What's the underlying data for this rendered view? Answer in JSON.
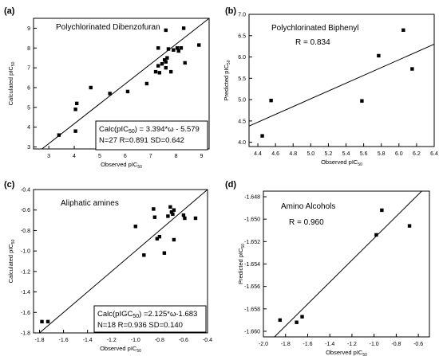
{
  "chart_data": [
    {
      "type": "scatter",
      "panel_label": "(a)",
      "title": "Polychlorinated Dibenzofuran",
      "xlabel_main": "Observed pIC",
      "xlabel_sub": "50",
      "ylabel_main": "Calculated pIC",
      "ylabel_sub": "50",
      "xlim": [
        2.4,
        9.3
      ],
      "ylim": [
        2.9,
        9.5
      ],
      "xticks": [
        3,
        4,
        5,
        6,
        7,
        8,
        9
      ],
      "yticks": [
        3,
        4,
        5,
        6,
        7,
        8,
        9
      ],
      "x": [
        3.4,
        4.05,
        4.05,
        4.1,
        4.65,
        5.4,
        6.1,
        6.85,
        7.2,
        7.3,
        7.35,
        7.45,
        7.55,
        7.6,
        7.6,
        7.65,
        7.7,
        7.8,
        7.9,
        8.05,
        8.1,
        8.2,
        8.3,
        8.35,
        8.9,
        7.6,
        7.3
      ],
      "y": [
        3.6,
        3.8,
        4.9,
        5.2,
        6.0,
        5.7,
        5.8,
        6.2,
        6.8,
        8.0,
        6.75,
        7.2,
        7.4,
        7.3,
        8.9,
        7.5,
        7.95,
        6.8,
        7.9,
        8.0,
        7.85,
        8.0,
        9.0,
        7.25,
        8.15,
        7.0,
        7.1
      ],
      "fit_line": {
        "x": [
          2.4,
          9.3
        ],
        "y": [
          2.566,
          9.5
        ]
      },
      "annotation_lines": [
        {
          "pre": "Calc(pIC",
          "sub": "50",
          "post": ") = 3.394*ω - 5.579"
        },
        {
          "pre": "N=27 R=0.891 SD=0.642",
          "sub": "",
          "post": ""
        }
      ]
    },
    {
      "type": "scatter",
      "panel_label": "(b)",
      "title": "Polychlorinated Biphenyl",
      "stat": "R = 0.834",
      "xlabel_main": "Observed pIC",
      "xlabel_sub": "50",
      "ylabel_main": "Predicted pIC",
      "ylabel_sub": "50",
      "xlim": [
        4.3,
        6.4
      ],
      "ylim": [
        3.9,
        7.0
      ],
      "xticks": [
        4.4,
        4.6,
        4.8,
        5.0,
        5.2,
        5.4,
        5.6,
        5.8,
        6.0,
        6.2,
        6.4
      ],
      "yticks": [
        4.0,
        4.5,
        5.0,
        5.5,
        6.0,
        6.5,
        7.0
      ],
      "xtick_fmt": 1,
      "ytick_fmt": 1,
      "x": [
        4.45,
        4.55,
        5.58,
        5.77,
        6.05,
        6.15
      ],
      "y": [
        4.15,
        4.98,
        4.97,
        6.03,
        6.63,
        5.72
      ],
      "fit_line": {
        "x": [
          4.3,
          6.4
        ],
        "y": [
          4.38,
          6.3
        ]
      }
    },
    {
      "type": "scatter",
      "panel_label": "(c)",
      "title": "Aliphatic amines",
      "xlabel_main": "Observed pIC",
      "xlabel_sub": "50",
      "ylabel_main": "Calculated pIC",
      "ylabel_sub": "50",
      "xlim": [
        -1.85,
        -0.4
      ],
      "ylim": [
        -1.8,
        -0.4
      ],
      "xticks": [
        -1.8,
        -1.6,
        -1.4,
        -1.2,
        -1.0,
        -0.8,
        -0.6,
        -0.4
      ],
      "yticks": [
        -1.8,
        -1.6,
        -1.4,
        -1.2,
        -1.0,
        -0.8,
        -0.6,
        -0.4
      ],
      "xtick_fmt": 1,
      "ytick_fmt": 1,
      "x": [
        -1.78,
        -1.73,
        -1.0,
        -0.93,
        -0.85,
        -0.84,
        -0.82,
        -0.76,
        -0.73,
        -0.71,
        -0.7,
        -0.69,
        -0.68,
        -0.6,
        -0.59,
        -0.5,
        -0.68,
        -0.8
      ],
      "y": [
        -1.69,
        -1.69,
        -0.76,
        -1.04,
        -0.59,
        -0.67,
        -0.88,
        -1.02,
        -0.66,
        -0.57,
        -0.62,
        -0.64,
        -0.89,
        -0.65,
        -0.68,
        -0.68,
        -0.6,
        -0.86
      ],
      "fit_line": {
        "x": [
          -1.85,
          -0.4
        ],
        "y": [
          -1.85,
          -0.4
        ]
      },
      "annotation_lines": [
        {
          "pre": "Calc(pIGC",
          "sub": "50",
          "post": ") =2.125*ω-1.683"
        },
        {
          "pre": "N=18 R=0.936 SD=0.140",
          "sub": "",
          "post": ""
        }
      ]
    },
    {
      "type": "scatter",
      "panel_label": "(d)",
      "title": "Amino Alcohols",
      "stat": "R = 0.960",
      "xlabel_main": "Observed pIC",
      "xlabel_sub": "50",
      "ylabel_main": "Predicted pIC",
      "ylabel_sub": "50",
      "xlim": [
        -2.0,
        -0.5
      ],
      "ylim": [
        -1.6605,
        -1.6475
      ],
      "xticks": [
        -2.0,
        -1.8,
        -1.6,
        -1.4,
        -1.2,
        -1.0,
        -0.8,
        -0.6
      ],
      "yticks": [
        -1.66,
        -1.658,
        -1.656,
        -1.654,
        -1.652,
        -1.65,
        -1.648
      ],
      "xtick_fmt": 1,
      "ytick_fmt": 3,
      "x": [
        -1.85,
        -1.7,
        -1.65,
        -0.98,
        -0.93,
        -0.68
      ],
      "y": [
        -1.659,
        -1.6592,
        -1.6587,
        -1.6514,
        -1.6492,
        -1.6506
      ],
      "fit_line": {
        "x": [
          -1.9,
          -0.57
        ],
        "y": [
          -1.6605,
          -1.6475
        ]
      }
    }
  ]
}
